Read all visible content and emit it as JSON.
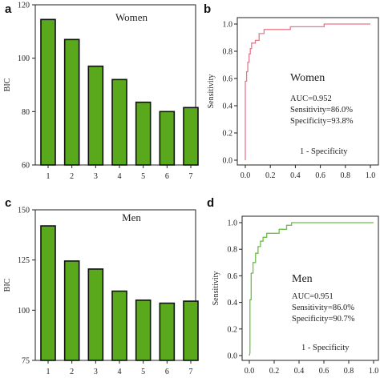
{
  "chart_data": [
    {
      "panel": "a",
      "type": "bar",
      "title": "Women",
      "ylabel": "BIC",
      "xlabel": "",
      "categories": [
        "1",
        "2",
        "3",
        "4",
        "5",
        "6",
        "7"
      ],
      "values": [
        114.5,
        107,
        97,
        92,
        83.5,
        80,
        81.5
      ],
      "ylim": [
        60,
        120
      ],
      "yticks": [
        60,
        80,
        100,
        120
      ],
      "bar_color": "#5aa81c",
      "grid": false
    },
    {
      "panel": "b",
      "type": "line",
      "title": "Women",
      "ylabel": "Sensitivity",
      "xlabel": "1 - Specificity",
      "xlim": [
        0,
        1
      ],
      "ylim": [
        0,
        1
      ],
      "xticks": [
        "0.0",
        "0.2",
        "0.4",
        "0.6",
        "0.8",
        "1.0"
      ],
      "yticks": [
        "0.0",
        "0.2",
        "0.4",
        "0.6",
        "0.8",
        "1.0"
      ],
      "stats": [
        "AUC=0.952",
        "Sensitivity=86.0%",
        "Specificity=93.8%"
      ],
      "line_color": "#e8788a",
      "series": [
        {
          "x": [
            0,
            0,
            0.01,
            0.01,
            0.02,
            0.02,
            0.03,
            0.03,
            0.04,
            0.04,
            0.05,
            0.05,
            0.08,
            0.08,
            0.11,
            0.11,
            0.15,
            0.15,
            0.36,
            0.36,
            0.63,
            0.63,
            1.0
          ],
          "y": [
            0,
            0.58,
            0.58,
            0.65,
            0.65,
            0.72,
            0.72,
            0.78,
            0.78,
            0.82,
            0.82,
            0.86,
            0.86,
            0.88,
            0.88,
            0.93,
            0.93,
            0.96,
            0.96,
            0.98,
            0.98,
            1.0,
            1.0
          ]
        }
      ]
    },
    {
      "panel": "c",
      "type": "bar",
      "title": "Men",
      "ylabel": "BIC",
      "xlabel": "",
      "categories": [
        "1",
        "2",
        "3",
        "4",
        "5",
        "6",
        "7"
      ],
      "values": [
        142,
        124.5,
        120.5,
        109.5,
        105,
        103.5,
        104.5
      ],
      "ylim": [
        75,
        150
      ],
      "yticks": [
        75,
        100,
        125,
        150
      ],
      "bar_color": "#5aa81c",
      "grid": false
    },
    {
      "panel": "d",
      "type": "line",
      "title": "Men",
      "ylabel": "Sensitivity",
      "xlabel": "1 - Specificity",
      "xlim": [
        0,
        1
      ],
      "ylim": [
        0,
        1
      ],
      "xticks": [
        "0.0",
        "0.2",
        "0.4",
        "0.6",
        "0.8",
        "1.0"
      ],
      "yticks": [
        "0.0",
        "0.2",
        "0.4",
        "0.6",
        "0.8",
        "1.0"
      ],
      "stats": [
        "AUC=0.951",
        "Sensitivity=86.0%",
        "Specificity=90.7%"
      ],
      "line_color": "#6dbf4a",
      "series": [
        {
          "x": [
            0,
            0.005,
            0.005,
            0.015,
            0.015,
            0.03,
            0.03,
            0.05,
            0.05,
            0.07,
            0.07,
            0.09,
            0.09,
            0.11,
            0.11,
            0.14,
            0.14,
            0.24,
            0.24,
            0.3,
            0.3,
            0.34,
            0.34,
            1.0
          ],
          "y": [
            0,
            0.02,
            0.42,
            0.42,
            0.62,
            0.62,
            0.7,
            0.7,
            0.77,
            0.77,
            0.82,
            0.82,
            0.86,
            0.86,
            0.89,
            0.89,
            0.92,
            0.92,
            0.95,
            0.95,
            0.98,
            0.98,
            1.0,
            1.0
          ]
        }
      ]
    }
  ]
}
